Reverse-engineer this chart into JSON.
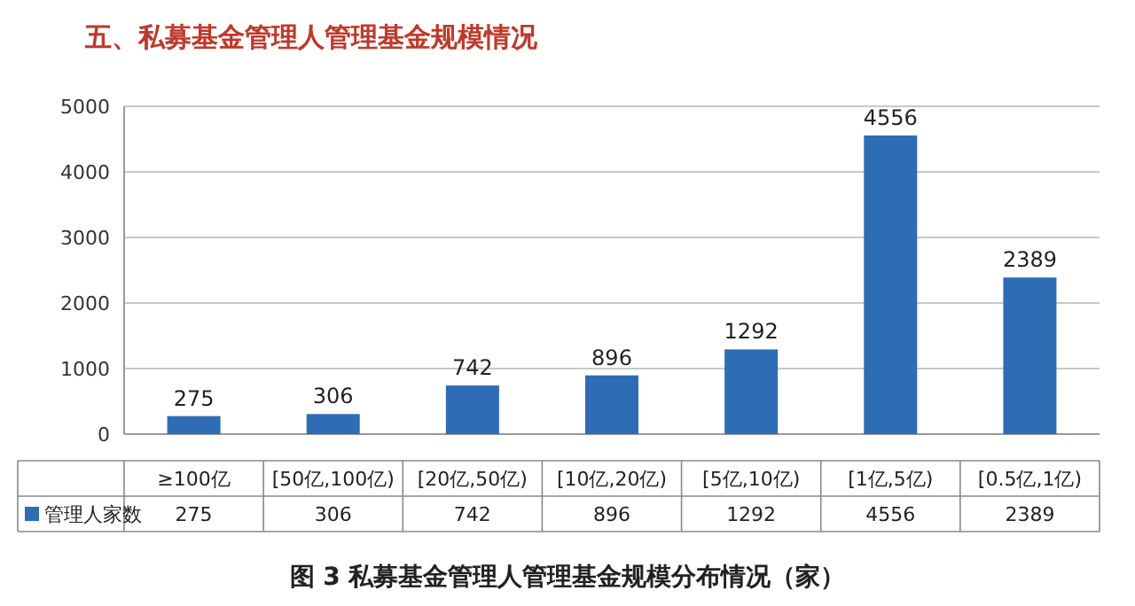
{
  "chart_data": {
    "type": "bar",
    "title": "五、私募基金管理人管理基金规模情况",
    "annotations": [
      "图 3 私募基金管理人管理基金规模分布情况（家）",
      "275",
      "306",
      "742",
      "896",
      "1292",
      "4556",
      "2389"
    ],
    "categories": [
      "≥100亿",
      "[50亿,100亿)",
      "[20亿,50亿)",
      "[10亿,20亿)",
      "[5亿,10亿)",
      "[1亿,5亿)",
      "[0.5亿,1亿)"
    ],
    "series": [
      {
        "name": "管理人家数",
        "color": "#2e6db4",
        "values": [
          275,
          306,
          742,
          896,
          1292,
          4556,
          2389
        ],
        "value_labels": [
          "275",
          "306",
          "742",
          "896",
          "1292",
          "4556",
          "2389"
        ]
      }
    ],
    "ylim": [
      0,
      5000
    ],
    "yticks": [
      0,
      1000,
      2000,
      3000,
      4000,
      5000
    ],
    "grid": "y",
    "legend": "bottom",
    "data_labels": true
  }
}
